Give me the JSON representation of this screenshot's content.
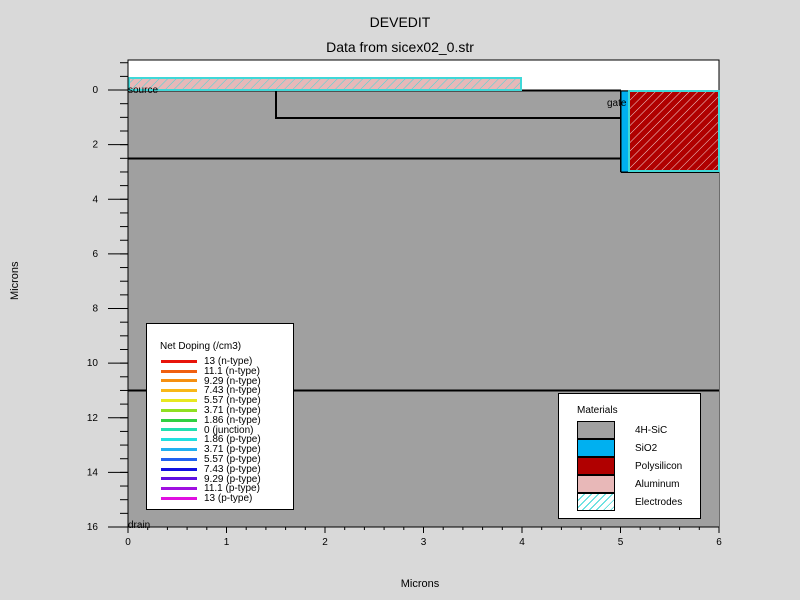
{
  "title": "DEVEDIT",
  "subtitle": "Data from sicex02_0.str",
  "axes": {
    "xlabel": "Microns",
    "ylabel": "Microns",
    "xlim": [
      0,
      6
    ],
    "ylim": [
      16,
      -1.1
    ],
    "xticks": [
      "0",
      "1",
      "2",
      "3",
      "4",
      "5",
      "6"
    ],
    "yticks": [
      "0",
      "2",
      "4",
      "6",
      "8",
      "10",
      "12",
      "14",
      "16"
    ]
  },
  "electrodes": {
    "source": "source",
    "gate": "gate",
    "drain": "drain"
  },
  "doping_legend": {
    "title": "Net Doping (/cm3)",
    "entries": [
      {
        "label": "13 (n-type)",
        "color": "#e8140a"
      },
      {
        "label": "11.1 (n-type)",
        "color": "#f06010"
      },
      {
        "label": "9.29 (n-type)",
        "color": "#f59010"
      },
      {
        "label": "7.43 (n-type)",
        "color": "#f8b818"
      },
      {
        "label": "5.57 (n-type)",
        "color": "#e8e820"
      },
      {
        "label": "3.71 (n-type)",
        "color": "#90e020"
      },
      {
        "label": "1.86 (n-type)",
        "color": "#30d040"
      },
      {
        "label": "0 (junction)",
        "color": "#20e0b0"
      },
      {
        "label": "1.86 (p-type)",
        "color": "#20e0e0"
      },
      {
        "label": "3.71 (p-type)",
        "color": "#20b0f0"
      },
      {
        "label": "5.57 (p-type)",
        "color": "#2060f0"
      },
      {
        "label": "7.43 (p-type)",
        "color": "#1010e0"
      },
      {
        "label": "9.29 (p-type)",
        "color": "#6010e0"
      },
      {
        "label": "11.1 (p-type)",
        "color": "#a010e0"
      },
      {
        "label": "13 (p-type)",
        "color": "#e010e0"
      }
    ]
  },
  "materials_legend": {
    "title": "Materials",
    "entries": [
      {
        "label": "4H-SiC",
        "color": "#a0a0a0"
      },
      {
        "label": "SiO2",
        "color": "#00b0f0"
      },
      {
        "label": "Polysilicon",
        "color": "#b00000"
      },
      {
        "label": "Aluminum",
        "color": "#e8b8b8"
      },
      {
        "label": "Electrodes",
        "color": "#ffffff"
      }
    ]
  }
}
